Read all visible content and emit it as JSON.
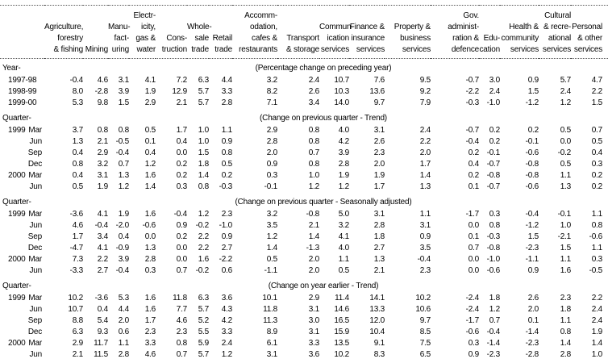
{
  "colors": {
    "text": "#000000",
    "background": "#ffffff",
    "rule": "#555555"
  },
  "table": {
    "columns": [
      {
        "id": "agriculture-forestry-fishing",
        "lines": [
          "Agriculture,",
          "forestry",
          "& fishing"
        ]
      },
      {
        "id": "mining",
        "lines": [
          "Mining"
        ]
      },
      {
        "id": "manufacturing",
        "lines": [
          "Manu-",
          "fact-",
          "uring"
        ]
      },
      {
        "id": "electricity-gas-water",
        "lines": [
          "Electr-",
          "icity,",
          "gas &",
          "water"
        ]
      },
      {
        "id": "construction",
        "lines": [
          "Cons-",
          "truction"
        ]
      },
      {
        "id": "wholesale-trade",
        "lines": [
          "Whole-",
          "sale",
          "trade"
        ]
      },
      {
        "id": "retail-trade",
        "lines": [
          "Retail",
          "trade"
        ]
      },
      {
        "id": "accommodation-cafes-restaurants",
        "lines": [
          "Accomm-",
          "odation,",
          "cafes &",
          "restaurants"
        ]
      },
      {
        "id": "transport-storage",
        "lines": [
          "Transport",
          "& storage"
        ]
      },
      {
        "id": "communication-services",
        "lines": [
          "Commun-",
          "ication",
          "services"
        ]
      },
      {
        "id": "finance-insurance-services",
        "lines": [
          "Finance &",
          "insurance",
          "services"
        ]
      },
      {
        "id": "property-business-services",
        "lines": [
          "Property &",
          "business",
          "services"
        ]
      },
      {
        "id": "gov-administration-defence",
        "lines": [
          "Gov.",
          "administ-",
          "ration &",
          "defence"
        ]
      },
      {
        "id": "education",
        "lines": [
          "Edu-",
          "cation"
        ]
      },
      {
        "id": "health-community-services",
        "lines": [
          "Health &",
          "community",
          "services"
        ]
      },
      {
        "id": "cultural-recreational-services",
        "lines": [
          "Cultural",
          "& recre-",
          "ational",
          "services"
        ]
      },
      {
        "id": "personal-other-services",
        "lines": [
          "Personal",
          "& other",
          "services"
        ]
      }
    ],
    "sections": [
      {
        "id": "annual",
        "period_label": "Year-",
        "annotation": "(Percentage change on preceding year)",
        "rows": [
          {
            "year": "1997-98",
            "period": "",
            "values": [
              "-0.4",
              "4.6",
              "3.1",
              "4.1",
              "7.2",
              "6.3",
              "4.4",
              "3.2",
              "2.4",
              "10.7",
              "7.6",
              "9.5",
              "-0.7",
              "3.0",
              "0.9",
              "5.7",
              "4.7"
            ]
          },
          {
            "year": "1998-99",
            "period": "",
            "values": [
              "8.0",
              "-2.8",
              "3.9",
              "1.9",
              "12.9",
              "5.7",
              "3.3",
              "8.2",
              "2.6",
              "10.3",
              "13.6",
              "9.2",
              "-2.2",
              "2.4",
              "1.5",
              "2.4",
              "2.2"
            ]
          },
          {
            "year": "1999-00",
            "period": "",
            "values": [
              "5.3",
              "9.8",
              "1.5",
              "2.9",
              "2.1",
              "5.7",
              "2.8",
              "7.1",
              "3.4",
              "14.0",
              "9.7",
              "7.9",
              "-0.3",
              "-1.0",
              "-1.2",
              "1.2",
              "1.5"
            ]
          }
        ]
      },
      {
        "id": "quarterly-trend",
        "period_label": "Quarter-",
        "annotation": "(Change on previous quarter - Trend)",
        "rows": [
          {
            "year": "1999",
            "period": "Mar",
            "values": [
              "3.7",
              "0.8",
              "0.8",
              "0.5",
              "1.7",
              "1.0",
              "1.1",
              "2.9",
              "0.8",
              "4.0",
              "3.1",
              "2.4",
              "-0.7",
              "0.2",
              "0.2",
              "0.5",
              "0.7"
            ]
          },
          {
            "year": "",
            "period": "Jun",
            "values": [
              "1.3",
              "2.1",
              "-0.5",
              "0.1",
              "0.4",
              "1.0",
              "0.9",
              "2.8",
              "0.8",
              "4.2",
              "2.6",
              "2.2",
              "-0.4",
              "0.2",
              "-0.1",
              "0.0",
              "0.5"
            ]
          },
          {
            "year": "",
            "period": "Sep",
            "values": [
              "0.4",
              "2.9",
              "-0.4",
              "0.4",
              "0.0",
              "1.5",
              "0.8",
              "2.0",
              "0.7",
              "3.9",
              "2.3",
              "2.0",
              "0.2",
              "-0.1",
              "-0.6",
              "-0.2",
              "0.4"
            ]
          },
          {
            "year": "",
            "period": "Dec",
            "values": [
              "0.8",
              "3.2",
              "0.7",
              "1.2",
              "0.2",
              "1.8",
              "0.5",
              "0.9",
              "0.8",
              "2.8",
              "2.0",
              "1.7",
              "0.4",
              "-0.7",
              "-0.8",
              "0.5",
              "0.3"
            ]
          },
          {
            "year": "2000",
            "period": "Mar",
            "values": [
              "0.4",
              "3.1",
              "1.3",
              "1.6",
              "0.2",
              "1.4",
              "0.2",
              "0.3",
              "1.0",
              "1.9",
              "1.9",
              "1.4",
              "0.2",
              "-0.8",
              "-0.8",
              "1.1",
              "0.2"
            ]
          },
          {
            "year": "",
            "period": "Jun",
            "values": [
              "0.5",
              "1.9",
              "1.2",
              "1.4",
              "0.3",
              "0.8",
              "-0.3",
              "-0.1",
              "1.2",
              "1.2",
              "1.7",
              "1.3",
              "0.1",
              "-0.7",
              "-0.6",
              "1.3",
              "0.2"
            ]
          }
        ]
      },
      {
        "id": "quarterly-seasonally-adjusted",
        "period_label": "Quarter-",
        "annotation": "(Change on previous quarter - Seasonally adjusted)",
        "rows": [
          {
            "year": "1999",
            "period": "Mar",
            "values": [
              "-3.6",
              "4.1",
              "1.9",
              "1.6",
              "-0.4",
              "1.2",
              "2.3",
              "3.2",
              "-0.8",
              "5.0",
              "3.1",
              "1.1",
              "-1.7",
              "0.3",
              "-0.4",
              "-0.1",
              "1.1"
            ]
          },
          {
            "year": "",
            "period": "Jun",
            "values": [
              "4.6",
              "-0.4",
              "-2.0",
              "-0.6",
              "0.9",
              "-0.2",
              "-1.0",
              "3.5",
              "2.1",
              "3.2",
              "2.8",
              "3.1",
              "0.0",
              "0.8",
              "-1.2",
              "1.0",
              "0.8"
            ]
          },
          {
            "year": "",
            "period": "Sep",
            "values": [
              "1.7",
              "3.4",
              "0.4",
              "0.0",
              "0.2",
              "2.2",
              "0.9",
              "1.2",
              "1.4",
              "4.1",
              "1.8",
              "0.9",
              "0.1",
              "-0.3",
              "1.5",
              "-2.1",
              "-0.6"
            ]
          },
          {
            "year": "",
            "period": "Dec",
            "values": [
              "-4.7",
              "4.1",
              "-0.9",
              "1.3",
              "0.0",
              "2.2",
              "2.7",
              "1.4",
              "-1.3",
              "4.0",
              "2.7",
              "3.5",
              "0.7",
              "-0.8",
              "-2.3",
              "1.5",
              "1.1"
            ]
          },
          {
            "year": "2000",
            "period": "Mar",
            "values": [
              "7.3",
              "2.2",
              "3.9",
              "2.8",
              "0.0",
              "1.6",
              "-2.2",
              "0.5",
              "2.0",
              "1.1",
              "1.3",
              "-0.4",
              "0.0",
              "-1.0",
              "-1.1",
              "1.1",
              "0.3"
            ]
          },
          {
            "year": "",
            "period": "Jun",
            "values": [
              "-3.3",
              "2.7",
              "-0.4",
              "0.3",
              "0.7",
              "-0.2",
              "0.6",
              "-1.1",
              "2.0",
              "0.5",
              "2.1",
              "2.3",
              "0.0",
              "-0.6",
              "0.9",
              "1.6",
              "-0.5"
            ]
          }
        ]
      },
      {
        "id": "quarterly-year-earlier-trend",
        "period_label": "Quarter-",
        "annotation": "(Change on year earlier - Trend)",
        "rows": [
          {
            "year": "1999",
            "period": "Mar",
            "values": [
              "10.2",
              "-3.6",
              "5.3",
              "1.6",
              "11.8",
              "6.3",
              "3.6",
              "10.1",
              "2.9",
              "11.4",
              "14.1",
              "10.2",
              "-2.4",
              "1.8",
              "2.6",
              "2.3",
              "2.2"
            ]
          },
          {
            "year": "",
            "period": "Jun",
            "values": [
              "10.7",
              "0.4",
              "4.4",
              "1.6",
              "7.7",
              "5.7",
              "4.3",
              "11.8",
              "3.1",
              "14.6",
              "13.3",
              "10.6",
              "-2.4",
              "1.2",
              "2.0",
              "1.8",
              "2.4"
            ]
          },
          {
            "year": "",
            "period": "Sep",
            "values": [
              "8.8",
              "5.4",
              "2.0",
              "1.7",
              "4.6",
              "5.2",
              "4.2",
              "11.3",
              "3.0",
              "16.5",
              "12.0",
              "9.7",
              "-1.7",
              "0.7",
              "0.1",
              "1.1",
              "2.4"
            ]
          },
          {
            "year": "",
            "period": "Dec",
            "values": [
              "6.3",
              "9.3",
              "0.6",
              "2.3",
              "2.3",
              "5.5",
              "3.3",
              "8.9",
              "3.1",
              "15.9",
              "10.4",
              "8.5",
              "-0.6",
              "-0.4",
              "-1.4",
              "0.8",
              "1.9"
            ]
          },
          {
            "year": "2000",
            "period": "Mar",
            "values": [
              "2.9",
              "11.7",
              "1.1",
              "3.3",
              "0.8",
              "5.9",
              "2.4",
              "6.1",
              "3.3",
              "13.5",
              "9.1",
              "7.5",
              "0.3",
              "-1.4",
              "-2.3",
              "1.4",
              "1.4"
            ]
          },
          {
            "year": "",
            "period": "Jun",
            "values": [
              "2.1",
              "11.5",
              "2.8",
              "4.6",
              "0.7",
              "5.7",
              "1.2",
              "3.1",
              "3.6",
              "10.2",
              "8.3",
              "6.5",
              "0.9",
              "-2.3",
              "-2.8",
              "2.8",
              "1.0"
            ]
          }
        ]
      }
    ]
  }
}
